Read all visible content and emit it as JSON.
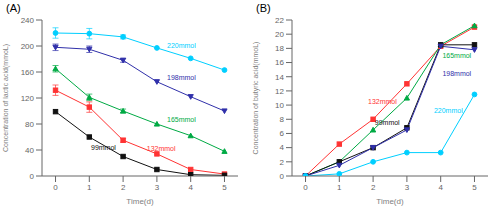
{
  "chart_data": [
    {
      "type": "line",
      "title": "(A)",
      "x": [
        0,
        1,
        2,
        3,
        4,
        5
      ],
      "xlabel": "Time(d)",
      "ylabel": "Concentration of lactic acid(mmoL)",
      "xlim": [
        -0.4,
        5.4
      ],
      "xticks": [
        0,
        1,
        2,
        3,
        4,
        5
      ],
      "ylim": [
        0,
        240
      ],
      "yticks": [
        0,
        40,
        80,
        120,
        160,
        200,
        240
      ],
      "grid": false,
      "series": [
        {
          "name": "220mmol",
          "color": "#00CFFF",
          "marker": "circle",
          "values": [
            220,
            219,
            214,
            197,
            181,
            163
          ],
          "errors": [
            8,
            8,
            3,
            0,
            0,
            0
          ]
        },
        {
          "name": "198mmol",
          "color": "#3030AA",
          "marker": "triangle_down",
          "values": [
            198,
            195,
            178,
            145,
            122,
            100
          ],
          "errors": [
            5,
            5,
            3,
            0,
            0,
            0
          ]
        },
        {
          "name": "165mmol",
          "color": "#00AA44",
          "marker": "triangle_up",
          "values": [
            165,
            121,
            100,
            80,
            62,
            38
          ],
          "errors": [
            5,
            5,
            3,
            0,
            0,
            0
          ]
        },
        {
          "name": "132mmol",
          "color": "#FF3333",
          "marker": "square",
          "values": [
            132,
            106,
            55,
            34,
            10,
            3
          ],
          "errors": [
            8,
            8,
            3,
            0,
            0,
            0
          ]
        },
        {
          "name": "99mmol",
          "color": "#111111",
          "marker": "square",
          "values": [
            99,
            60,
            30,
            10,
            2,
            1
          ],
          "errors": [
            0,
            0,
            0,
            0,
            0,
            0
          ]
        }
      ],
      "annotations": [
        {
          "text": "220mmol",
          "x": 3.3,
          "y": 200
        },
        {
          "text": "198mmol",
          "x": 3.3,
          "y": 152
        },
        {
          "text": "165mmol",
          "x": 3.3,
          "y": 87
        },
        {
          "text": "132mmol",
          "x": 2.7,
          "y": 43
        },
        {
          "text": "99mmol",
          "x": 1.05,
          "y": 44
        }
      ]
    },
    {
      "type": "line",
      "title": "(B)",
      "x": [
        0,
        1,
        2,
        3,
        4,
        5
      ],
      "xlabel": "Time(d)",
      "ylabel": "Concentration of butyric acid(mmoL)",
      "xlim": [
        -0.4,
        5.4
      ],
      "xticks": [
        0,
        1,
        2,
        3,
        4,
        5
      ],
      "ylim": [
        0,
        22
      ],
      "yticks": [
        0,
        2,
        4,
        6,
        8,
        10,
        12,
        14,
        16,
        18,
        20,
        22
      ],
      "grid": false,
      "series": [
        {
          "name": "132mmol",
          "color": "#FF3333",
          "marker": "square",
          "values": [
            0,
            4.5,
            8.0,
            13.0,
            18.3,
            21.0
          ]
        },
        {
          "name": "165mmol",
          "color": "#00AA44",
          "marker": "triangle_up",
          "values": [
            0,
            2.0,
            6.5,
            11.0,
            18.5,
            21.2
          ]
        },
        {
          "name": "99mmol",
          "color": "#111111",
          "marker": "square",
          "values": [
            0,
            2.0,
            4.0,
            6.8,
            18.5,
            18.5
          ]
        },
        {
          "name": "198mmol",
          "color": "#3030AA",
          "marker": "triangle_down",
          "values": [
            0,
            1.5,
            4.0,
            6.5,
            18.3,
            17.8
          ]
        },
        {
          "name": "220mmol",
          "color": "#00CFFF",
          "marker": "circle",
          "values": [
            0,
            0.3,
            2.0,
            3.3,
            3.3,
            11.5
          ]
        }
      ],
      "annotations": [
        {
          "text": "132mmol",
          "x": 1.85,
          "y": 10.5
        },
        {
          "text": "99mmol",
          "x": 2.05,
          "y": 7.6
        },
        {
          "text": "165mmol",
          "x": 4.05,
          "y": 17.0
        },
        {
          "text": "198mmol",
          "x": 4.05,
          "y": 14.5
        },
        {
          "text": "220mmol",
          "x": 3.8,
          "y": 9.2
        }
      ]
    }
  ]
}
